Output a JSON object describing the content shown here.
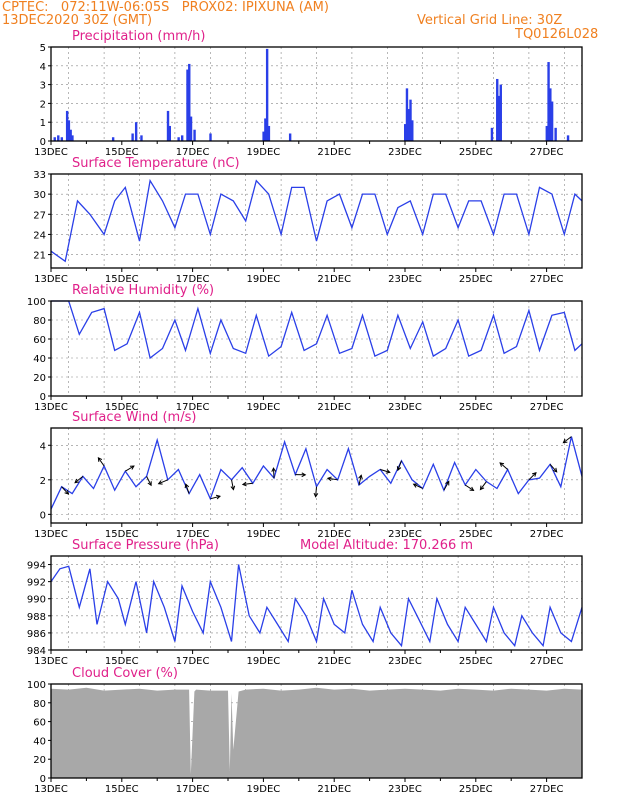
{
  "header": {
    "line1": "CPTEC:   072:11W-06:05S   PROX02: IPIXUNA (AM)",
    "date": "13DEC2020 30Z (GMT)",
    "grid_note": "Vertical Grid Line: 30Z",
    "code": "TQ0126L028"
  },
  "chart_data": [
    {
      "id": "precipitation",
      "type": "bar",
      "title": "Precipitation (mm/h)",
      "ylim": [
        0,
        5
      ],
      "yticks": [
        0,
        1,
        2,
        3,
        4,
        5
      ],
      "color": "#2a3fe8",
      "date_labels": [
        "13DEC",
        "15DEC",
        "17DEC",
        "19DEC",
        "21DEC",
        "23DEC",
        "25DEC",
        "27DEC"
      ],
      "bars": [
        [
          0.1,
          0.2
        ],
        [
          0.2,
          0.3
        ],
        [
          0.3,
          0.2
        ],
        [
          0.45,
          1.6
        ],
        [
          0.5,
          1.1
        ],
        [
          0.55,
          0.6
        ],
        [
          0.6,
          0.3
        ],
        [
          1.75,
          0.2
        ],
        [
          2.3,
          0.4
        ],
        [
          2.4,
          1.0
        ],
        [
          2.55,
          0.3
        ],
        [
          3.3,
          1.6
        ],
        [
          3.35,
          0.8
        ],
        [
          3.6,
          0.2
        ],
        [
          3.7,
          0.3
        ],
        [
          3.85,
          3.8
        ],
        [
          3.9,
          4.1
        ],
        [
          3.95,
          1.3
        ],
        [
          4.05,
          0.6
        ],
        [
          4.5,
          0.4
        ],
        [
          6.0,
          0.5
        ],
        [
          6.05,
          1.2
        ],
        [
          6.1,
          4.9
        ],
        [
          6.15,
          0.8
        ],
        [
          6.75,
          0.4
        ],
        [
          10.0,
          0.9
        ],
        [
          10.05,
          2.8
        ],
        [
          10.1,
          1.7
        ],
        [
          10.15,
          2.2
        ],
        [
          10.2,
          1.1
        ],
        [
          12.45,
          0.7
        ],
        [
          12.6,
          3.3
        ],
        [
          12.65,
          2.4
        ],
        [
          12.7,
          3.0
        ],
        [
          14.0,
          0.8
        ],
        [
          14.05,
          4.2
        ],
        [
          14.1,
          2.8
        ],
        [
          14.15,
          2.1
        ],
        [
          14.25,
          0.7
        ],
        [
          14.6,
          0.3
        ]
      ]
    },
    {
      "id": "temperature",
      "type": "line",
      "title": "Surface Temperature (nC)",
      "ylim": [
        19,
        33
      ],
      "yticks": [
        21,
        24,
        27,
        30,
        33
      ],
      "color": "#2a3fe8",
      "date_labels": [
        "13DEC",
        "15DEC",
        "17DEC",
        "19DEC",
        "21DEC",
        "23DEC",
        "25DEC",
        "27DEC"
      ],
      "x": [
        0,
        0.4,
        0.75,
        1.1,
        1.5,
        1.8,
        2.1,
        2.5,
        2.8,
        3.15,
        3.5,
        3.8,
        4.15,
        4.5,
        4.8,
        5.15,
        5.5,
        5.8,
        6.15,
        6.5,
        6.8,
        7.15,
        7.5,
        7.8,
        8.15,
        8.5,
        8.8,
        9.15,
        9.5,
        9.8,
        10.15,
        10.5,
        10.8,
        11.15,
        11.5,
        11.8,
        12.15,
        12.5,
        12.8,
        13.15,
        13.5,
        13.8,
        14.15,
        14.5,
        14.8,
        15
      ],
      "values": [
        21.5,
        20,
        29,
        27,
        24,
        29,
        31,
        23,
        32,
        29,
        25,
        30,
        30,
        24,
        30,
        29,
        26,
        32,
        30,
        24,
        31,
        31,
        23,
        29,
        30,
        25,
        30,
        30,
        24,
        28,
        29,
        24,
        30,
        30,
        25,
        29,
        29,
        24,
        30,
        30,
        24,
        31,
        30,
        24,
        30,
        29
      ]
    },
    {
      "id": "humidity",
      "type": "line",
      "title": "Relative Humidity (%)",
      "ylim": [
        0,
        100
      ],
      "yticks": [
        0,
        20,
        40,
        60,
        80,
        100
      ],
      "color": "#2a3fe8",
      "date_labels": [
        "13DEC",
        "15DEC",
        "17DEC",
        "19DEC",
        "21DEC",
        "23DEC",
        "25DEC",
        "27DEC"
      ],
      "x": [
        0,
        0.5,
        0.8,
        1.15,
        1.5,
        1.8,
        2.15,
        2.5,
        2.8,
        3.15,
        3.5,
        3.8,
        4.15,
        4.5,
        4.8,
        5.15,
        5.5,
        5.8,
        6.15,
        6.5,
        6.8,
        7.15,
        7.5,
        7.8,
        8.15,
        8.5,
        8.8,
        9.15,
        9.5,
        9.8,
        10.15,
        10.5,
        10.8,
        11.15,
        11.5,
        11.8,
        12.15,
        12.5,
        12.8,
        13.15,
        13.5,
        13.8,
        14.15,
        14.5,
        14.8,
        15
      ],
      "values": [
        100,
        100,
        65,
        88,
        92,
        48,
        55,
        88,
        40,
        50,
        80,
        48,
        92,
        45,
        80,
        50,
        45,
        85,
        42,
        52,
        88,
        48,
        55,
        85,
        45,
        50,
        85,
        42,
        48,
        85,
        50,
        78,
        42,
        50,
        80,
        42,
        48,
        85,
        45,
        52,
        90,
        48,
        85,
        88,
        48,
        55
      ]
    },
    {
      "id": "wind",
      "type": "line",
      "title": "Surface Wind (m/s)",
      "ylim": [
        -0.5,
        5
      ],
      "yticks": [
        0,
        2,
        4
      ],
      "color": "#2a3fe8",
      "date_labels": [
        "13DEC",
        "15DEC",
        "17DEC",
        "19DEC",
        "21DEC",
        "23DEC",
        "25DEC",
        "27DEC"
      ],
      "x": [
        0,
        0.3,
        0.6,
        0.9,
        1.2,
        1.5,
        1.8,
        2.1,
        2.4,
        2.7,
        3.0,
        3.3,
        3.6,
        3.9,
        4.2,
        4.5,
        4.8,
        5.1,
        5.4,
        5.7,
        6.0,
        6.3,
        6.6,
        6.9,
        7.2,
        7.5,
        7.8,
        8.1,
        8.4,
        8.7,
        9.0,
        9.3,
        9.6,
        9.9,
        10.2,
        10.5,
        10.8,
        11.1,
        11.4,
        11.7,
        12.0,
        12.3,
        12.6,
        12.9,
        13.2,
        13.5,
        13.8,
        14.1,
        14.4,
        14.7,
        15
      ],
      "values": [
        0.3,
        1.6,
        1.2,
        2.2,
        1.5,
        2.8,
        1.4,
        2.5,
        1.6,
        2.2,
        4.3,
        2.0,
        2.6,
        1.2,
        2.3,
        0.9,
        2.6,
        2.0,
        2.7,
        1.8,
        2.8,
        2.1,
        4.2,
        2.3,
        3.8,
        1.6,
        2.6,
        2.0,
        3.8,
        1.7,
        2.2,
        2.6,
        1.8,
        3.1,
        2.0,
        1.5,
        2.9,
        1.4,
        3.0,
        1.7,
        2.6,
        1.9,
        1.5,
        2.6,
        1.2,
        2.0,
        2.1,
        2.9,
        1.6,
        4.5,
        2.2
      ]
    },
    {
      "id": "pressure",
      "type": "line",
      "title": "Surface Pressure (hPa)",
      "subtitle": "Model Altitude: 170.266 m",
      "ylim": [
        984,
        995
      ],
      "yticks": [
        984,
        986,
        988,
        990,
        992,
        994
      ],
      "color": "#2a3fe8",
      "date_labels": [
        "13DEC",
        "15DEC",
        "17DEC",
        "19DEC",
        "21DEC",
        "23DEC",
        "25DEC",
        "27DEC"
      ],
      "x": [
        0,
        0.25,
        0.5,
        0.8,
        1.1,
        1.3,
        1.6,
        1.9,
        2.1,
        2.4,
        2.7,
        2.9,
        3.2,
        3.5,
        3.7,
        4.0,
        4.3,
        4.5,
        4.8,
        5.1,
        5.3,
        5.6,
        5.9,
        6.1,
        6.4,
        6.7,
        6.9,
        7.2,
        7.5,
        7.7,
        8.0,
        8.3,
        8.5,
        8.8,
        9.1,
        9.3,
        9.6,
        9.9,
        10.1,
        10.4,
        10.7,
        10.9,
        11.2,
        11.5,
        11.7,
        12.0,
        12.3,
        12.5,
        12.8,
        13.1,
        13.3,
        13.6,
        13.9,
        14.1,
        14.4,
        14.7,
        15
      ],
      "values": [
        992,
        993.5,
        993.8,
        989,
        993.5,
        987,
        992,
        990,
        987,
        992,
        986,
        992,
        989,
        985,
        991.5,
        988.5,
        986,
        992,
        989,
        985,
        994,
        988,
        986,
        989,
        987,
        985,
        990,
        988,
        985,
        990,
        987,
        986,
        991,
        987,
        985,
        989,
        986,
        984.5,
        990,
        987.5,
        985,
        990,
        987,
        985,
        989,
        987,
        985,
        989,
        986,
        984.5,
        988,
        986,
        984.5,
        989,
        986,
        985,
        989
      ]
    },
    {
      "id": "cloud",
      "type": "area",
      "title": "Cloud Cover (%)",
      "ylim": [
        0,
        100
      ],
      "yticks": [
        0,
        20,
        40,
        60,
        80,
        100
      ],
      "color": "#a8a8a8",
      "date_labels": [
        "13DEC",
        "15DEC",
        "17DEC",
        "19DEC",
        "21DEC",
        "23DEC",
        "25DEC",
        "27DEC"
      ],
      "x": [
        0,
        0.5,
        1,
        1.5,
        2,
        2.5,
        3,
        3.5,
        3.9,
        3.95,
        4.05,
        4.1,
        4.5,
        5.0,
        5.05,
        5.1,
        5.15,
        5.3,
        5.5,
        6,
        6.5,
        7,
        7.5,
        8,
        8.5,
        9,
        9.5,
        10,
        10.5,
        11,
        11.5,
        12,
        12.5,
        13,
        13.5,
        14,
        14.5,
        15
      ],
      "values": [
        95,
        94,
        96,
        93,
        94,
        95,
        93,
        94,
        94,
        4,
        92,
        94,
        93,
        93,
        8,
        90,
        30,
        92,
        94,
        95,
        93,
        94,
        96,
        94,
        95,
        93,
        94,
        95,
        94,
        93,
        95,
        94,
        93,
        95,
        94,
        93,
        95,
        94
      ]
    }
  ]
}
